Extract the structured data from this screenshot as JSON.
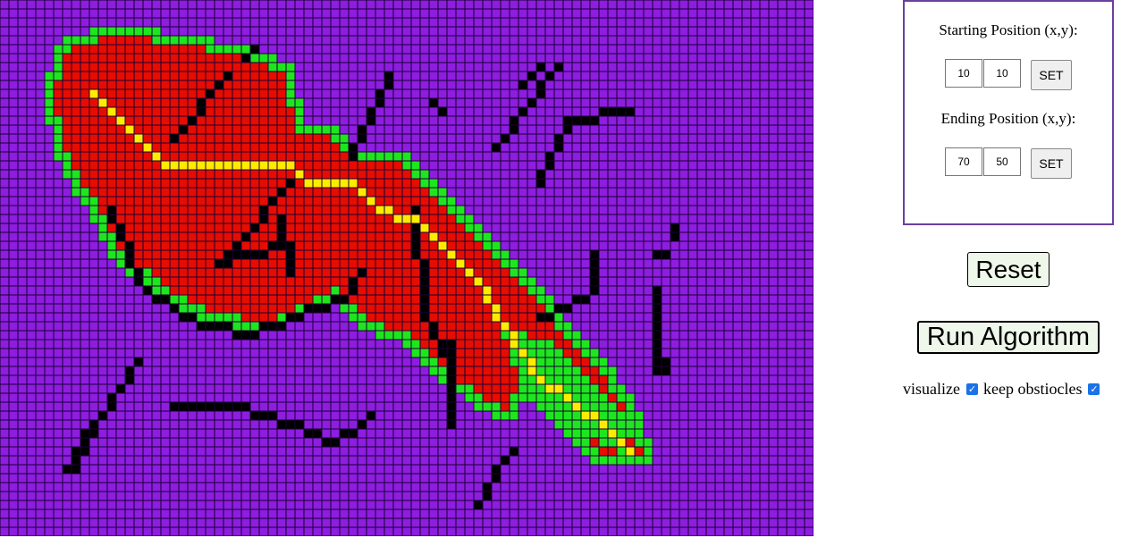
{
  "grid": {
    "cols": 91,
    "rows": 60,
    "colors": {
      "empty": "#8d1ddf",
      "wall": "#000000",
      "visited": "#e60d00",
      "frontier": "#1ee61e",
      "path": "#ffeb00",
      "gridline": "#1a0033"
    }
  },
  "panel": {
    "start_label": "Starting Position (x,y):",
    "start_x": "10",
    "start_y": "10",
    "end_label": "Ending Position (x,y):",
    "end_x": "70",
    "end_y": "50",
    "set_label": "SET"
  },
  "controls": {
    "reset_label": "Reset",
    "run_label": "Run Algorithm",
    "visualize_label": "visualize",
    "visualize_checked": true,
    "keep_obstacles_label": "keep obstiocles",
    "keep_obstacles_checked": true
  }
}
